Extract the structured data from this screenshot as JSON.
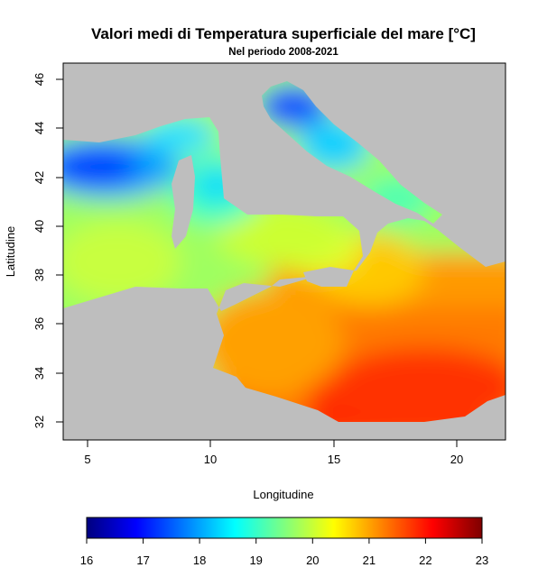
{
  "title": "Valori medi di Temperatura superficiale del mare [°C]",
  "subtitle": "Nel periodo 2008-2021",
  "xlabel": "Longitudine",
  "ylabel": "Latitudine",
  "x_ticks": [
    "5",
    "10",
    "15",
    "20"
  ],
  "y_ticks": [
    "32",
    "34",
    "36",
    "38",
    "40",
    "42",
    "44",
    "46"
  ],
  "colorbar": {
    "ticks": [
      "16",
      "17",
      "18",
      "19",
      "20",
      "21",
      "22",
      "23"
    ],
    "range": [
      16,
      23
    ],
    "colors": [
      "#00007F",
      "#0000FF",
      "#007FFF",
      "#00FFFF",
      "#7FFF7F",
      "#FFFF00",
      "#FF7F00",
      "#FF0000",
      "#7F0000"
    ]
  },
  "map": {
    "lon_range": [
      4,
      22
    ],
    "lat_range": [
      31.6,
      46.8
    ],
    "land_color": "#BEBEBE"
  }
}
